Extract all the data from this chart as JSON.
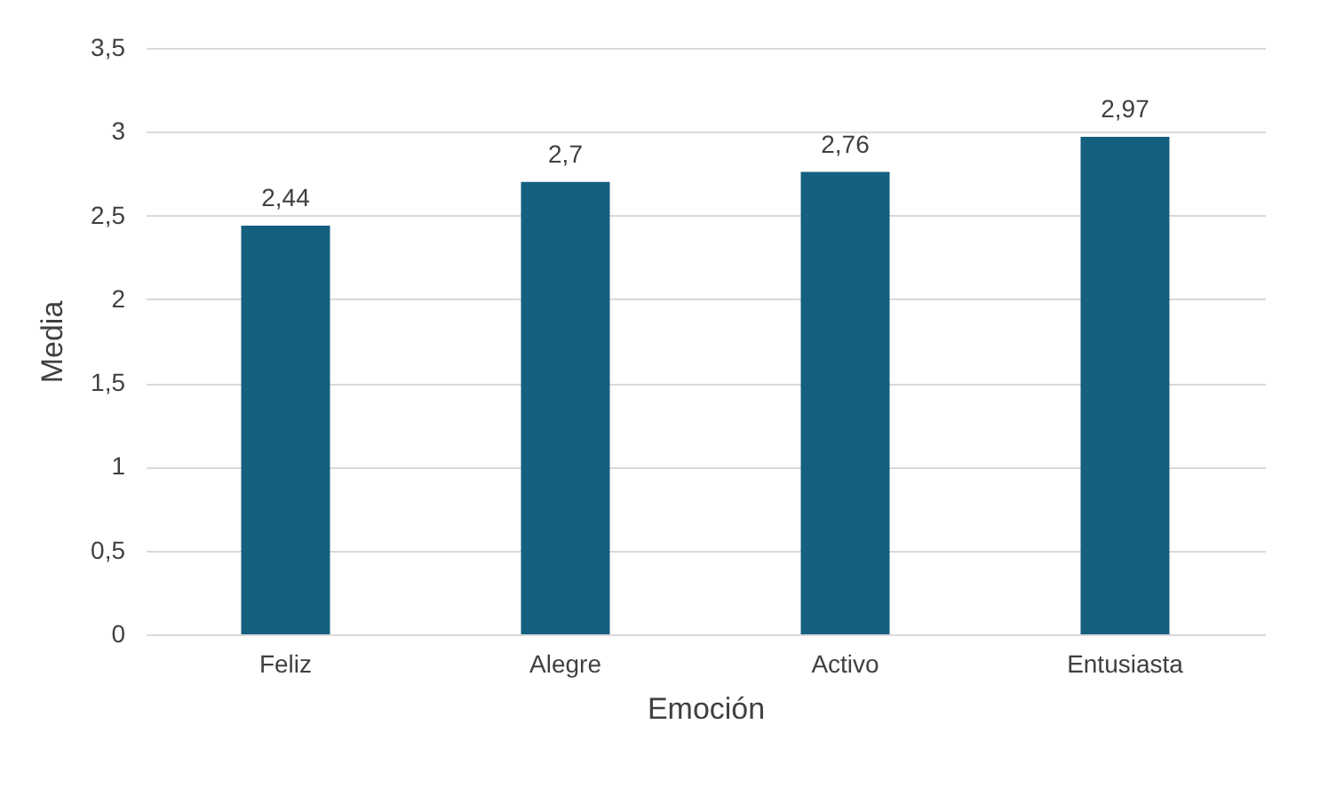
{
  "chart_data": {
    "type": "bar",
    "xlabel": "Emoción",
    "ylabel": "Media",
    "categories": [
      "Feliz",
      "Alegre",
      "Activo",
      "Entusiasta"
    ],
    "values": [
      2.44,
      2.7,
      2.76,
      2.97
    ],
    "value_labels": [
      "2,44",
      "2,7",
      "2,76",
      "2,97"
    ],
    "color": "#155f7f",
    "ylim": [
      0,
      3.5
    ],
    "yticks": [
      0,
      {
        "value": 0.5,
        "label": "0,5"
      },
      1,
      {
        "value": 1.5,
        "label": "1,5"
      },
      2,
      {
        "value": 2.5,
        "label": "2,5"
      },
      3,
      {
        "value": 3.5,
        "label": "3,5"
      }
    ],
    "grid": "y"
  }
}
